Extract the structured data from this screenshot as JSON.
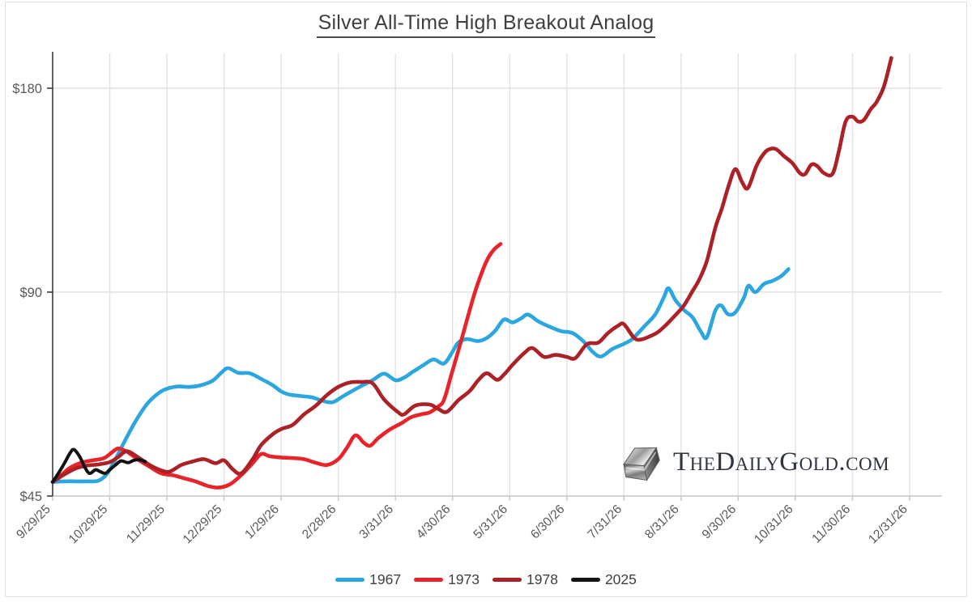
{
  "title": "Silver All-Time High Breakout Analog",
  "watermark": {
    "text": "TheDailyGold.com",
    "icon": "silver-ingot-icon"
  },
  "legend": {
    "position": "bottom",
    "entries": [
      "1967",
      "1973",
      "1978",
      "2025"
    ]
  },
  "chart_data": {
    "type": "line",
    "title": "Silver All-Time High Breakout Analog",
    "xlabel": "",
    "ylabel": "",
    "grid": true,
    "y_axis": {
      "scale": "log2",
      "unit": "USD",
      "tick_labels": [
        "$45",
        "$90",
        "$180"
      ],
      "tick_values": [
        45,
        90,
        180
      ],
      "range": [
        45,
        205
      ]
    },
    "x_axis": {
      "tick_labels": [
        "9/29/25",
        "10/29/25",
        "11/29/25",
        "12/29/25",
        "1/29/26",
        "2/28/26",
        "3/31/26",
        "4/30/26",
        "5/31/26",
        "6/30/26",
        "7/31/26",
        "8/31/26",
        "9/30/26",
        "10/31/26",
        "11/30/26",
        "12/31/26"
      ],
      "note": "t below = months after 9/29/25 tick"
    },
    "series": [
      {
        "name": "1967",
        "color": "#2BA6DE",
        "points": [
          [
            0,
            47.2
          ],
          [
            0.2,
            47.3
          ],
          [
            0.4,
            47.3
          ],
          [
            0.6,
            47.3
          ],
          [
            0.8,
            47.4
          ],
          [
            0.95,
            48.5
          ],
          [
            1.1,
            51
          ],
          [
            1.25,
            54
          ],
          [
            1.45,
            58
          ],
          [
            1.65,
            61.5
          ],
          [
            1.85,
            63.8
          ],
          [
            2.0,
            64.8
          ],
          [
            2.2,
            65.3
          ],
          [
            2.4,
            65.2
          ],
          [
            2.6,
            65.6
          ],
          [
            2.8,
            66.6
          ],
          [
            2.95,
            68.4
          ],
          [
            3.07,
            69.5
          ],
          [
            3.25,
            68.4
          ],
          [
            3.45,
            68.3
          ],
          [
            3.65,
            67
          ],
          [
            3.85,
            65.6
          ],
          [
            4.0,
            64.2
          ],
          [
            4.15,
            63.5
          ],
          [
            4.35,
            63.2
          ],
          [
            4.55,
            62.9
          ],
          [
            4.75,
            62.1
          ],
          [
            4.9,
            61.9
          ],
          [
            5.05,
            62.9
          ],
          [
            5.2,
            64
          ],
          [
            5.4,
            65.4
          ],
          [
            5.6,
            66.7
          ],
          [
            5.8,
            68.2
          ],
          [
            6.0,
            66.7
          ],
          [
            6.15,
            67.3
          ],
          [
            6.3,
            68.6
          ],
          [
            6.5,
            70.3
          ],
          [
            6.67,
            71.6
          ],
          [
            6.85,
            70.6
          ],
          [
            7.0,
            73.5
          ],
          [
            7.1,
            75.8
          ],
          [
            7.25,
            76.7
          ],
          [
            7.45,
            76.2
          ],
          [
            7.6,
            77
          ],
          [
            7.75,
            79
          ],
          [
            7.9,
            82
          ],
          [
            8.05,
            81.2
          ],
          [
            8.2,
            82.3
          ],
          [
            8.32,
            83.4
          ],
          [
            8.5,
            81.5
          ],
          [
            8.7,
            80
          ],
          [
            8.9,
            78.8
          ],
          [
            9.1,
            78.3
          ],
          [
            9.3,
            76
          ],
          [
            9.45,
            73.5
          ],
          [
            9.6,
            72.3
          ],
          [
            9.8,
            74.2
          ],
          [
            10.0,
            75.5
          ],
          [
            10.15,
            76.8
          ],
          [
            10.35,
            80
          ],
          [
            10.55,
            83.5
          ],
          [
            10.7,
            88.5
          ],
          [
            10.78,
            91.2
          ],
          [
            10.9,
            87.6
          ],
          [
            11.05,
            84.7
          ],
          [
            11.2,
            82.6
          ],
          [
            11.35,
            78.6
          ],
          [
            11.45,
            77.2
          ],
          [
            11.6,
            84.5
          ],
          [
            11.7,
            86
          ],
          [
            11.82,
            83.5
          ],
          [
            11.95,
            84
          ],
          [
            12.1,
            88.3
          ],
          [
            12.18,
            92
          ],
          [
            12.3,
            90
          ],
          [
            12.45,
            92.5
          ],
          [
            12.6,
            93.5
          ],
          [
            12.75,
            95
          ],
          [
            12.88,
            97.3
          ]
        ]
      },
      {
        "name": "1973",
        "color": "#E8232A",
        "points": [
          [
            0,
            47.2
          ],
          [
            0.15,
            48.3
          ],
          [
            0.3,
            49.5
          ],
          [
            0.5,
            50.4
          ],
          [
            0.7,
            50.8
          ],
          [
            0.9,
            51.2
          ],
          [
            1.05,
            52.3
          ],
          [
            1.15,
            52.9
          ],
          [
            1.3,
            52.3
          ],
          [
            1.5,
            50.9
          ],
          [
            1.7,
            49.7
          ],
          [
            1.9,
            48.6
          ],
          [
            2.1,
            48.3
          ],
          [
            2.3,
            47.8
          ],
          [
            2.5,
            47.3
          ],
          [
            2.7,
            46.6
          ],
          [
            2.9,
            46.3
          ],
          [
            3.1,
            46.8
          ],
          [
            3.3,
            48.3
          ],
          [
            3.5,
            50.3
          ],
          [
            3.65,
            51.9
          ],
          [
            3.8,
            51.5
          ],
          [
            4.0,
            51.3
          ],
          [
            4.2,
            51.2
          ],
          [
            4.4,
            51.0
          ],
          [
            4.6,
            50.4
          ],
          [
            4.8,
            50.0
          ],
          [
            5.0,
            51.0
          ],
          [
            5.15,
            53
          ],
          [
            5.3,
            55.3
          ],
          [
            5.45,
            53.9
          ],
          [
            5.56,
            53.4
          ],
          [
            5.7,
            54.8
          ],
          [
            5.9,
            56.4
          ],
          [
            6.1,
            57.6
          ],
          [
            6.27,
            58.8
          ],
          [
            6.45,
            59.4
          ],
          [
            6.6,
            59.8
          ],
          [
            6.75,
            61
          ],
          [
            6.85,
            62.4
          ],
          [
            6.98,
            68
          ],
          [
            7.12,
            74.7
          ],
          [
            7.26,
            82.3
          ],
          [
            7.4,
            90.4
          ],
          [
            7.55,
            98
          ],
          [
            7.65,
            102
          ],
          [
            7.75,
            104.5
          ],
          [
            7.84,
            106
          ]
        ]
      },
      {
        "name": "1978",
        "color": "#AC2125",
        "points": [
          [
            0,
            47.2
          ],
          [
            0.2,
            48.4
          ],
          [
            0.4,
            49.4
          ],
          [
            0.6,
            49.9
          ],
          [
            0.8,
            50.1
          ],
          [
            1.0,
            50.5
          ],
          [
            1.15,
            51.4
          ],
          [
            1.3,
            52.4
          ],
          [
            1.5,
            51.3
          ],
          [
            1.7,
            50
          ],
          [
            1.9,
            49.1
          ],
          [
            2.05,
            48.9
          ],
          [
            2.25,
            50
          ],
          [
            2.45,
            50.6
          ],
          [
            2.65,
            51
          ],
          [
            2.85,
            50.3
          ],
          [
            3.0,
            50.8
          ],
          [
            3.15,
            49.3
          ],
          [
            3.3,
            48.6
          ],
          [
            3.5,
            51
          ],
          [
            3.65,
            53.5
          ],
          [
            3.85,
            55.5
          ],
          [
            4.0,
            56.5
          ],
          [
            4.2,
            57.3
          ],
          [
            4.4,
            59.4
          ],
          [
            4.6,
            61.1
          ],
          [
            4.8,
            63.4
          ],
          [
            5.0,
            65.2
          ],
          [
            5.2,
            66.2
          ],
          [
            5.4,
            66.3
          ],
          [
            5.6,
            66
          ],
          [
            5.8,
            62.5
          ],
          [
            6.05,
            59.8
          ],
          [
            6.15,
            59.4
          ],
          [
            6.35,
            61.2
          ],
          [
            6.6,
            61.4
          ],
          [
            6.75,
            60.5
          ],
          [
            6.9,
            59.9
          ],
          [
            7.1,
            62.3
          ],
          [
            7.3,
            64.3
          ],
          [
            7.45,
            66.7
          ],
          [
            7.6,
            68.3
          ],
          [
            7.78,
            66.8
          ],
          [
            7.9,
            68
          ],
          [
            8.05,
            70.3
          ],
          [
            8.25,
            73.1
          ],
          [
            8.4,
            74.4
          ],
          [
            8.6,
            72.2
          ],
          [
            8.8,
            72.7
          ],
          [
            9.0,
            72.2
          ],
          [
            9.15,
            71.9
          ],
          [
            9.35,
            75.4
          ],
          [
            9.55,
            75.8
          ],
          [
            9.72,
            78.3
          ],
          [
            9.9,
            80.3
          ],
          [
            10.0,
            80.7
          ],
          [
            10.18,
            77
          ],
          [
            10.3,
            76.6
          ],
          [
            10.45,
            77.4
          ],
          [
            10.6,
            78.6
          ],
          [
            10.75,
            80.7
          ],
          [
            10.9,
            83.2
          ],
          [
            11.05,
            86
          ],
          [
            11.2,
            90.3
          ],
          [
            11.32,
            94
          ],
          [
            11.45,
            100
          ],
          [
            11.6,
            112
          ],
          [
            11.72,
            120
          ],
          [
            11.83,
            129
          ],
          [
            11.95,
            136.7
          ],
          [
            12.07,
            130.7
          ],
          [
            12.17,
            128.2
          ],
          [
            12.32,
            138.2
          ],
          [
            12.46,
            144.5
          ],
          [
            12.57,
            146.5
          ],
          [
            12.67,
            146.2
          ],
          [
            12.8,
            142.9
          ],
          [
            12.95,
            139.5
          ],
          [
            13.08,
            134.9
          ],
          [
            13.17,
            134.4
          ],
          [
            13.28,
            138.8
          ],
          [
            13.38,
            138.2
          ],
          [
            13.5,
            134.9
          ],
          [
            13.65,
            134.5
          ],
          [
            13.76,
            145
          ],
          [
            13.88,
            160.7
          ],
          [
            14.0,
            163.4
          ],
          [
            14.1,
            160.7
          ],
          [
            14.2,
            161.6
          ],
          [
            14.32,
            167.6
          ],
          [
            14.42,
            171.6
          ],
          [
            14.55,
            181
          ],
          [
            14.68,
            199.5
          ]
        ]
      },
      {
        "name": "2025",
        "color": "#121212",
        "points": [
          [
            0,
            47.2
          ],
          [
            0.1,
            48.6
          ],
          [
            0.2,
            50.2
          ],
          [
            0.3,
            52
          ],
          [
            0.37,
            52.7
          ],
          [
            0.47,
            51.5
          ],
          [
            0.57,
            49.5
          ],
          [
            0.65,
            48.6
          ],
          [
            0.75,
            49.2
          ],
          [
            0.83,
            48.9
          ],
          [
            0.92,
            48.6
          ],
          [
            1.0,
            49.2
          ],
          [
            1.1,
            50
          ],
          [
            1.2,
            50.7
          ],
          [
            1.32,
            50.4
          ],
          [
            1.42,
            50.8
          ],
          [
            1.52,
            50.9
          ],
          [
            1.62,
            50.6
          ]
        ]
      }
    ],
    "legend_position": "bottom"
  },
  "colors": {
    "grid": "#e2e2e2",
    "x_axis_line": "#c6c6c6",
    "y_axis_line": "#3a3a3a",
    "tick_label": "#595959",
    "title_text": "#3f3f3f"
  }
}
